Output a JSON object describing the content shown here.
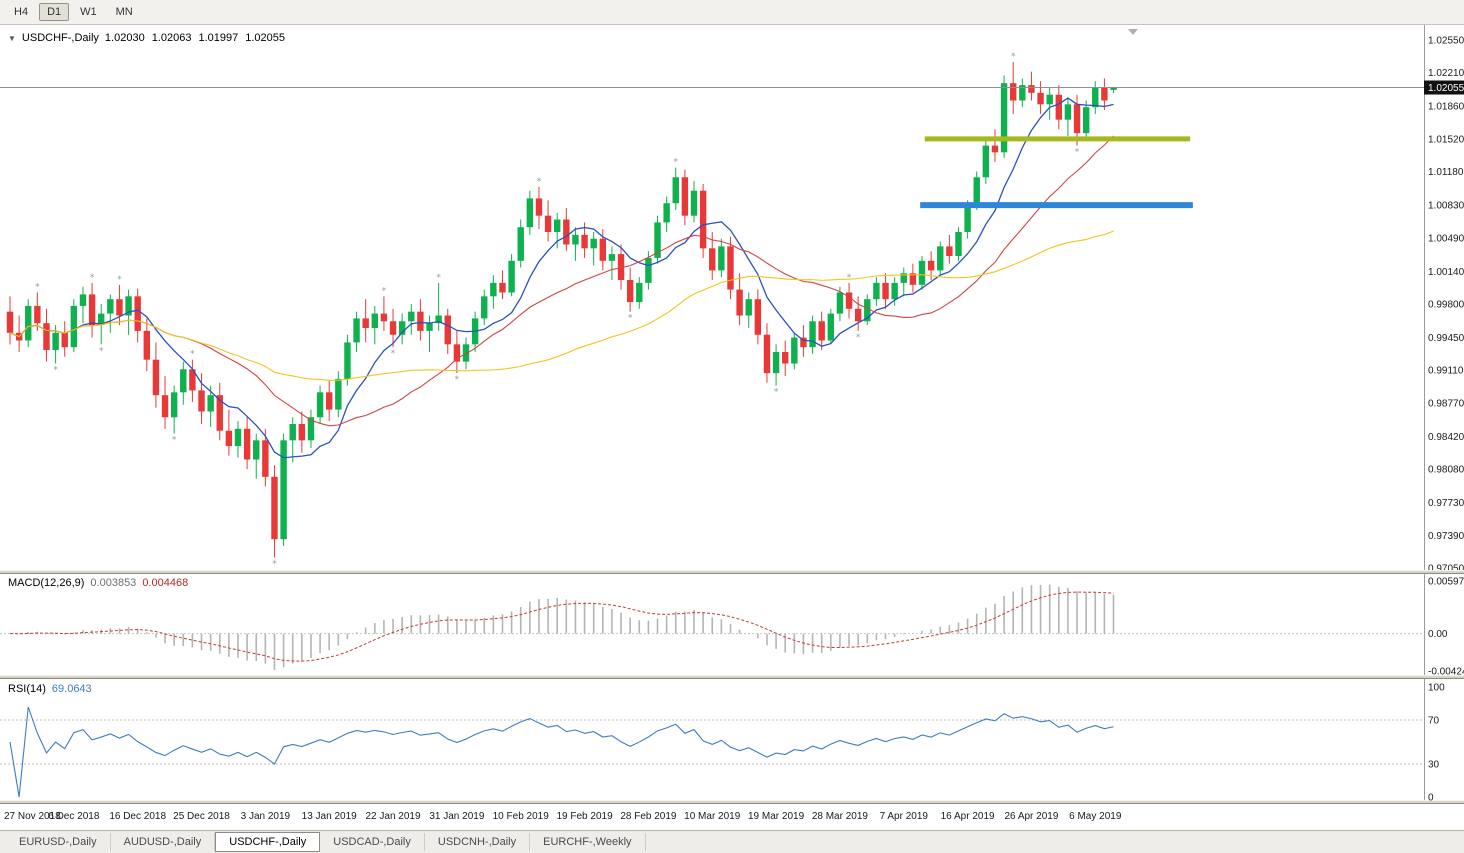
{
  "toolbar": {
    "timeframes": [
      {
        "label": "H4",
        "active": false
      },
      {
        "label": "D1",
        "active": true
      },
      {
        "label": "W1",
        "active": false
      },
      {
        "label": "MN",
        "active": false
      }
    ]
  },
  "icons": {
    "collapse": "▼"
  },
  "chart": {
    "symbol": "USDCHF-,Daily",
    "ohlc": {
      "open": "1.02030",
      "high": "1.02063",
      "low": "1.01997",
      "close": "1.02055"
    },
    "current_price": "1.02055"
  },
  "macd": {
    "label": "MACD(12,26,9)",
    "main_value": "0.003853",
    "signal_value": "0.004468",
    "range": {
      "max": 0.00597,
      "min": -0.00424
    },
    "axis": [
      {
        "label": "0.00597",
        "value": 0.00597
      },
      {
        "label": "0.00",
        "value": 0
      },
      {
        "label": "-0.00424",
        "value": -0.00424
      }
    ]
  },
  "rsi": {
    "label": "RSI(14)",
    "value": "69.0643",
    "period": 14,
    "levels": [
      70,
      30
    ],
    "axis": [
      {
        "label": "100",
        "value": 100
      },
      {
        "label": "70",
        "value": 70
      },
      {
        "label": "30",
        "value": 30
      },
      {
        "label": "0",
        "value": 0
      }
    ]
  },
  "tabs": [
    {
      "label": "EURUSD-,Daily",
      "active": false
    },
    {
      "label": "AUDUSD-,Daily",
      "active": false
    },
    {
      "label": "USDCHF-,Daily",
      "active": true
    },
    {
      "label": "USDCAD-,Daily",
      "active": false
    },
    {
      "label": "USDCNH-,Daily",
      "active": false
    },
    {
      "label": "EURCHF-,Weekly",
      "active": false
    }
  ],
  "colors": {
    "bull": "#0db14d",
    "bear": "#e93838",
    "macd_hist": "#b4b4b4",
    "macd_signal": "#c43a3a",
    "rsi_line": "#3f7cc4"
  },
  "chart_data": {
    "type": "candlestick",
    "symbol": "USDCHF",
    "timeframe": "Daily",
    "price_min": 0.9705,
    "price_max": 1.0255,
    "price_axis": [
      "1.02550",
      "1.02210",
      "1.01860",
      "1.01520",
      "1.01180",
      "1.00830",
      "1.00490",
      "1.00140",
      "0.99800",
      "0.99450",
      "0.99110",
      "0.98770",
      "0.98420",
      "0.98080",
      "0.97730",
      "0.97390",
      "0.97050"
    ],
    "x_labels": [
      "27 Nov 2018",
      "6 Dec 2018",
      "16 Dec 2018",
      "25 Dec 2018",
      "3 Jan 2019",
      "13 Jan 2019",
      "22 Jan 2019",
      "31 Jan 2019",
      "10 Feb 2019",
      "19 Feb 2019",
      "28 Feb 2019",
      "10 Mar 2019",
      "19 Mar 2019",
      "28 Mar 2019",
      "7 Apr 2019",
      "16 Apr 2019",
      "26 Apr 2019",
      "6 May 2019"
    ],
    "label_step": 7,
    "candles": [
      [
        0.9972,
        0.9988,
        0.9938,
        0.995
      ],
      [
        0.995,
        0.9968,
        0.993,
        0.9942
      ],
      [
        0.9942,
        0.9985,
        0.9935,
        0.9978
      ],
      [
        0.9978,
        0.9992,
        0.9952,
        0.996
      ],
      [
        0.996,
        0.9975,
        0.992,
        0.9932
      ],
      [
        0.9932,
        0.9958,
        0.9918,
        0.995
      ],
      [
        0.995,
        0.9962,
        0.9925,
        0.9935
      ],
      [
        0.9935,
        0.9985,
        0.993,
        0.9978
      ],
      [
        0.9978,
        0.9998,
        0.996,
        0.999
      ],
      [
        0.999,
        1.0002,
        0.9945,
        0.9958
      ],
      [
        0.9958,
        0.998,
        0.9938,
        0.997
      ],
      [
        0.997,
        0.999,
        0.995,
        0.9985
      ],
      [
        0.9985,
        1.0,
        0.9958,
        0.9968
      ],
      [
        0.9968,
        0.9995,
        0.9948,
        0.9988
      ],
      [
        0.9988,
        0.9996,
        0.994,
        0.9952
      ],
      [
        0.9952,
        0.9965,
        0.991,
        0.9922
      ],
      [
        0.9922,
        0.994,
        0.9872,
        0.9885
      ],
      [
        0.9885,
        0.9905,
        0.985,
        0.9862
      ],
      [
        0.9862,
        0.9895,
        0.9845,
        0.9888
      ],
      [
        0.9888,
        0.992,
        0.9875,
        0.9912
      ],
      [
        0.9912,
        0.9922,
        0.9878,
        0.989
      ],
      [
        0.989,
        0.9908,
        0.9855,
        0.9868
      ],
      [
        0.9868,
        0.9895,
        0.9852,
        0.9885
      ],
      [
        0.9885,
        0.9898,
        0.9838,
        0.9848
      ],
      [
        0.9848,
        0.987,
        0.9822,
        0.9832
      ],
      [
        0.9832,
        0.9858,
        0.982,
        0.985
      ],
      [
        0.985,
        0.9862,
        0.9808,
        0.9818
      ],
      [
        0.9818,
        0.9845,
        0.9798,
        0.9838
      ],
      [
        0.9838,
        0.985,
        0.979,
        0.98
      ],
      [
        0.98,
        0.9812,
        0.9716,
        0.9735
      ],
      [
        0.9735,
        0.9845,
        0.9728,
        0.9838
      ],
      [
        0.9838,
        0.9862,
        0.9815,
        0.9855
      ],
      [
        0.9855,
        0.9868,
        0.9825,
        0.9838
      ],
      [
        0.9838,
        0.987,
        0.983,
        0.9862
      ],
      [
        0.9862,
        0.9895,
        0.9855,
        0.9888
      ],
      [
        0.9888,
        0.99,
        0.9858,
        0.987
      ],
      [
        0.987,
        0.991,
        0.9862,
        0.9902
      ],
      [
        0.9902,
        0.9948,
        0.9895,
        0.994
      ],
      [
        0.994,
        0.9972,
        0.993,
        0.9965
      ],
      [
        0.9965,
        0.9985,
        0.994,
        0.9955
      ],
      [
        0.9955,
        0.9978,
        0.9938,
        0.997
      ],
      [
        0.997,
        0.9988,
        0.9952,
        0.9962
      ],
      [
        0.9962,
        0.9975,
        0.9935,
        0.9948
      ],
      [
        0.9948,
        0.997,
        0.9938,
        0.9962
      ],
      [
        0.9962,
        0.998,
        0.9948,
        0.9972
      ],
      [
        0.9972,
        0.9985,
        0.9942,
        0.9952
      ],
      [
        0.9952,
        0.9968,
        0.993,
        0.996
      ],
      [
        0.996,
        1.0002,
        0.9952,
        0.9968
      ],
      [
        0.9968,
        0.9975,
        0.9928,
        0.9938
      ],
      [
        0.9938,
        0.9952,
        0.9908,
        0.992
      ],
      [
        0.992,
        0.9945,
        0.9912,
        0.9938
      ],
      [
        0.9938,
        0.9972,
        0.993,
        0.9965
      ],
      [
        0.9965,
        0.9995,
        0.9958,
        0.9988
      ],
      [
        0.9988,
        1.001,
        0.9975,
        1.0002
      ],
      [
        1.0002,
        1.0015,
        0.9985,
        0.9992
      ],
      [
        0.9992,
        1.0032,
        0.9988,
        1.0025
      ],
      [
        1.0025,
        1.0068,
        1.0018,
        1.006
      ],
      [
        1.006,
        1.0098,
        1.0052,
        1.009
      ],
      [
        1.009,
        1.0102,
        1.0058,
        1.0072
      ],
      [
        1.0072,
        1.0088,
        1.0045,
        1.0055
      ],
      [
        1.0055,
        1.0075,
        1.0038,
        1.0068
      ],
      [
        1.0068,
        1.008,
        1.0035,
        1.0042
      ],
      [
        1.0042,
        1.006,
        1.0025,
        1.0052
      ],
      [
        1.0052,
        1.0065,
        1.0028,
        1.0038
      ],
      [
        1.0038,
        1.0055,
        1.002,
        1.0048
      ],
      [
        1.0048,
        1.0058,
        1.0015,
        1.0025
      ],
      [
        1.0025,
        1.004,
        1.0005,
        1.0032
      ],
      [
        1.0032,
        1.0042,
        0.9995,
        1.0005
      ],
      [
        1.0005,
        1.0018,
        0.9972,
        0.9982
      ],
      [
        0.9982,
        1.0008,
        0.9975,
        1.0002
      ],
      [
        1.0002,
        1.0035,
        0.9995,
        1.0028
      ],
      [
        1.0028,
        1.0072,
        1.0022,
        1.0065
      ],
      [
        1.0065,
        1.0092,
        1.0055,
        1.0085
      ],
      [
        1.0085,
        1.0122,
        1.0078,
        1.0112
      ],
      [
        1.0112,
        1.012,
        1.0062,
        1.0072
      ],
      [
        1.0072,
        1.0108,
        1.0065,
        1.0098
      ],
      [
        1.0098,
        1.0105,
        1.0028,
        1.0038
      ],
      [
        1.0038,
        1.0055,
        1.0005,
        1.0015
      ],
      [
        1.0015,
        1.0048,
        1.0008,
        1.004
      ],
      [
        1.004,
        1.005,
        0.9985,
        0.9995
      ],
      [
        0.9995,
        1.0012,
        0.9958,
        0.9968
      ],
      [
        0.9968,
        0.9992,
        0.9955,
        0.9985
      ],
      [
        0.9985,
        0.9995,
        0.9938,
        0.9948
      ],
      [
        0.9948,
        0.996,
        0.9898,
        0.9908
      ],
      [
        0.9908,
        0.9938,
        0.9895,
        0.993
      ],
      [
        0.993,
        0.9942,
        0.9905,
        0.9918
      ],
      [
        0.9918,
        0.995,
        0.9912,
        0.9945
      ],
      [
        0.9945,
        0.9958,
        0.9925,
        0.9935
      ],
      [
        0.9935,
        0.9968,
        0.9928,
        0.9962
      ],
      [
        0.9962,
        0.9972,
        0.9932,
        0.9942
      ],
      [
        0.9942,
        0.9975,
        0.9938,
        0.997
      ],
      [
        0.997,
        0.9998,
        0.9962,
        0.9992
      ],
      [
        0.9992,
        1.0002,
        0.9965,
        0.9975
      ],
      [
        0.9975,
        0.9988,
        0.9952,
        0.9962
      ],
      [
        0.9962,
        0.999,
        0.9958,
        0.9985
      ],
      [
        0.9985,
        1.0008,
        0.9978,
        1.0002
      ],
      [
        1.0002,
        1.0012,
        0.9975,
        0.9985
      ],
      [
        0.9985,
        1.0008,
        0.9978,
        1.0002
      ],
      [
        1.0002,
        1.0018,
        0.9988,
        1.0012
      ],
      [
        1.0012,
        1.0022,
        0.9992,
        1.0
      ],
      [
        1.0,
        1.003,
        0.9995,
        1.0025
      ],
      [
        1.0025,
        1.0035,
        1.0005,
        1.0015
      ],
      [
        1.0015,
        1.0045,
        1.001,
        1.004
      ],
      [
        1.004,
        1.0052,
        1.0022,
        1.003
      ],
      [
        1.003,
        1.006,
        1.0025,
        1.0055
      ],
      [
        1.0055,
        1.0088,
        1.0048,
        1.0082
      ],
      [
        1.0082,
        1.0118,
        1.0078,
        1.0112
      ],
      [
        1.0112,
        1.0152,
        1.0105,
        1.0145
      ],
      [
        1.0145,
        1.0162,
        1.0128,
        1.0138
      ],
      [
        1.0138,
        1.0218,
        1.0132,
        1.021
      ],
      [
        1.021,
        1.0232,
        1.0178,
        1.0192
      ],
      [
        1.0192,
        1.0215,
        1.0185,
        1.0208
      ],
      [
        1.0208,
        1.0222,
        1.0192,
        1.02
      ],
      [
        1.02,
        1.0212,
        1.0178,
        1.0188
      ],
      [
        1.0188,
        1.0205,
        1.0172,
        1.0198
      ],
      [
        1.0198,
        1.0208,
        1.0162,
        1.0172
      ],
      [
        1.0172,
        1.0195,
        1.0155,
        1.0188
      ],
      [
        1.0188,
        1.0198,
        1.0145,
        1.0158
      ],
      [
        1.0158,
        1.0192,
        1.0152,
        1.0185
      ],
      [
        1.0185,
        1.0212,
        1.0178,
        1.0205
      ],
      [
        1.0205,
        1.0215,
        1.0182,
        1.0192
      ],
      [
        1.0203,
        1.02063,
        1.01997,
        1.02055
      ]
    ],
    "overlays": {
      "moving_averages": [
        {
          "name": "fast",
          "period": 8,
          "color": "#2a52be"
        },
        {
          "name": "medium",
          "period": 20,
          "color": "#d04545"
        },
        {
          "name": "slow",
          "period": 45,
          "color": "#f2c51c"
        }
      ],
      "hlines": [
        {
          "name": "resistance-hline",
          "price": 1.0152,
          "color": "#a6b81f",
          "thickness": 5,
          "from_index": 100.3,
          "to_index": 129.4
        },
        {
          "name": "support-hline",
          "price": 1.0083,
          "color": "#2e86d8",
          "thickness": 6,
          "from_index": 99.8,
          "to_index": 129.7
        }
      ]
    },
    "indicators": {
      "macd": {
        "fast": 12,
        "slow": 26,
        "signal": 9
      },
      "rsi": {
        "period": 14
      }
    }
  }
}
